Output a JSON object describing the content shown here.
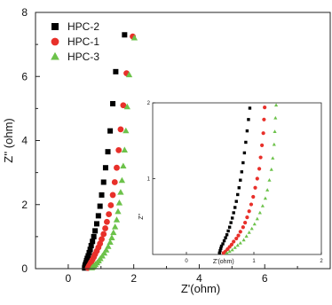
{
  "chart_data": [
    {
      "type": "scatter",
      "title": "",
      "xlabel": "Z'(ohm)",
      "ylabel": "Z'' (ohm)",
      "xlim": [
        -1,
        8
      ],
      "ylim": [
        0,
        8
      ],
      "xticks": [
        0,
        2,
        4,
        6
      ],
      "yticks": [
        0,
        2,
        4,
        6,
        8
      ],
      "grid": false,
      "legend": "top-left",
      "series": [
        {
          "name": "HPC-2",
          "marker": "square",
          "color": "#000000",
          "points": [
            [
              0.5,
              0.02
            ],
            [
              0.51,
              0.07
            ],
            [
              0.52,
              0.12
            ],
            [
              0.54,
              0.18
            ],
            [
              0.56,
              0.25
            ],
            [
              0.58,
              0.32
            ],
            [
              0.61,
              0.4
            ],
            [
              0.64,
              0.5
            ],
            [
              0.67,
              0.6
            ],
            [
              0.7,
              0.72
            ],
            [
              0.74,
              0.85
            ],
            [
              0.78,
              1.0
            ],
            [
              0.82,
              1.18
            ],
            [
              0.87,
              1.4
            ],
            [
              0.92,
              1.65
            ],
            [
              0.97,
              1.95
            ],
            [
              1.02,
              2.3
            ],
            [
              1.08,
              2.7
            ],
            [
              1.14,
              3.15
            ],
            [
              1.21,
              3.65
            ],
            [
              1.28,
              4.3
            ],
            [
              1.36,
              5.15
            ],
            [
              1.45,
              6.15
            ],
            [
              1.72,
              7.3
            ]
          ]
        },
        {
          "name": "HPC-1",
          "marker": "circle",
          "color": "#e8302a",
          "points": [
            [
              0.6,
              0.02
            ],
            [
              0.62,
              0.06
            ],
            [
              0.64,
              0.1
            ],
            [
              0.67,
              0.15
            ],
            [
              0.7,
              0.21
            ],
            [
              0.74,
              0.28
            ],
            [
              0.78,
              0.36
            ],
            [
              0.82,
              0.45
            ],
            [
              0.87,
              0.55
            ],
            [
              0.92,
              0.66
            ],
            [
              0.97,
              0.78
            ],
            [
              1.02,
              0.92
            ],
            [
              1.08,
              1.08
            ],
            [
              1.13,
              1.26
            ],
            [
              1.18,
              1.46
            ],
            [
              1.24,
              1.7
            ],
            [
              1.3,
              1.98
            ],
            [
              1.36,
              2.3
            ],
            [
              1.42,
              2.7
            ],
            [
              1.48,
              3.15
            ],
            [
              1.54,
              3.7
            ],
            [
              1.6,
              4.35
            ],
            [
              1.68,
              5.1
            ],
            [
              1.78,
              6.1
            ],
            [
              1.97,
              7.25
            ]
          ]
        },
        {
          "name": "HPC-3",
          "marker": "triangle",
          "color": "#6cc24a",
          "points": [
            [
              0.72,
              0.02
            ],
            [
              0.75,
              0.05
            ],
            [
              0.79,
              0.09
            ],
            [
              0.83,
              0.13
            ],
            [
              0.88,
              0.18
            ],
            [
              0.93,
              0.24
            ],
            [
              0.98,
              0.31
            ],
            [
              1.04,
              0.39
            ],
            [
              1.1,
              0.48
            ],
            [
              1.16,
              0.58
            ],
            [
              1.22,
              0.69
            ],
            [
              1.28,
              0.82
            ],
            [
              1.33,
              0.96
            ],
            [
              1.38,
              1.12
            ],
            [
              1.43,
              1.3
            ],
            [
              1.48,
              1.52
            ],
            [
              1.52,
              1.78
            ],
            [
              1.56,
              2.05
            ],
            [
              1.6,
              2.38
            ],
            [
              1.64,
              2.75
            ],
            [
              1.68,
              3.2
            ],
            [
              1.72,
              3.7
            ],
            [
              1.76,
              4.3
            ],
            [
              1.8,
              5.05
            ],
            [
              1.86,
              6.05
            ],
            [
              2.02,
              7.2
            ]
          ]
        }
      ]
    },
    {
      "type": "scatter",
      "title": "",
      "xlabel": "Z'(ohm)",
      "ylabel": "Z''",
      "xlim": [
        -0.5,
        2
      ],
      "ylim": [
        0,
        2
      ],
      "xticks": [
        0,
        1,
        2
      ],
      "yticks": [
        1,
        2
      ],
      "grid": false,
      "legend": "none",
      "series": [
        {
          "marker": "square",
          "color": "#000000",
          "points": [
            [
              0.49,
              0.02
            ],
            [
              0.5,
              0.05
            ],
            [
              0.51,
              0.08
            ],
            [
              0.52,
              0.11
            ],
            [
              0.54,
              0.14
            ],
            [
              0.56,
              0.18
            ],
            [
              0.58,
              0.22
            ],
            [
              0.6,
              0.26
            ],
            [
              0.62,
              0.31
            ],
            [
              0.64,
              0.36
            ],
            [
              0.66,
              0.42
            ],
            [
              0.68,
              0.48
            ],
            [
              0.7,
              0.55
            ],
            [
              0.72,
              0.62
            ],
            [
              0.74,
              0.7
            ],
            [
              0.76,
              0.79
            ],
            [
              0.78,
              0.88
            ],
            [
              0.8,
              0.98
            ],
            [
              0.82,
              1.09
            ],
            [
              0.84,
              1.21
            ],
            [
              0.86,
              1.34
            ],
            [
              0.88,
              1.48
            ],
            [
              0.9,
              1.63
            ],
            [
              0.92,
              1.78
            ],
            [
              0.94,
              1.93
            ]
          ]
        },
        {
          "marker": "circle",
          "color": "#e8302a",
          "points": [
            [
              0.55,
              0.02
            ],
            [
              0.58,
              0.04
            ],
            [
              0.61,
              0.07
            ],
            [
              0.64,
              0.1
            ],
            [
              0.67,
              0.13
            ],
            [
              0.7,
              0.17
            ],
            [
              0.74,
              0.21
            ],
            [
              0.77,
              0.25
            ],
            [
              0.8,
              0.3
            ],
            [
              0.84,
              0.36
            ],
            [
              0.87,
              0.42
            ],
            [
              0.9,
              0.49
            ],
            [
              0.93,
              0.57
            ],
            [
              0.96,
              0.66
            ],
            [
              0.99,
              0.76
            ],
            [
              1.02,
              0.88
            ],
            [
              1.05,
              1.0
            ],
            [
              1.08,
              1.13
            ],
            [
              1.1,
              1.28
            ],
            [
              1.12,
              1.44
            ],
            [
              1.14,
              1.6
            ],
            [
              1.15,
              1.78
            ],
            [
              1.16,
              1.94
            ]
          ]
        },
        {
          "marker": "triangle",
          "color": "#6cc24a",
          "points": [
            [
              0.6,
              0.02
            ],
            [
              0.64,
              0.04
            ],
            [
              0.68,
              0.06
            ],
            [
              0.72,
              0.09
            ],
            [
              0.76,
              0.12
            ],
            [
              0.8,
              0.15
            ],
            [
              0.85,
              0.19
            ],
            [
              0.89,
              0.24
            ],
            [
              0.93,
              0.29
            ],
            [
              0.97,
              0.34
            ],
            [
              1.01,
              0.4
            ],
            [
              1.05,
              0.47
            ],
            [
              1.09,
              0.55
            ],
            [
              1.13,
              0.64
            ],
            [
              1.17,
              0.74
            ],
            [
              1.2,
              0.85
            ],
            [
              1.23,
              0.98
            ],
            [
              1.26,
              1.12
            ],
            [
              1.28,
              1.27
            ],
            [
              1.3,
              1.45
            ],
            [
              1.31,
              1.62
            ],
            [
              1.32,
              1.8
            ],
            [
              1.33,
              1.97
            ]
          ]
        }
      ]
    }
  ]
}
